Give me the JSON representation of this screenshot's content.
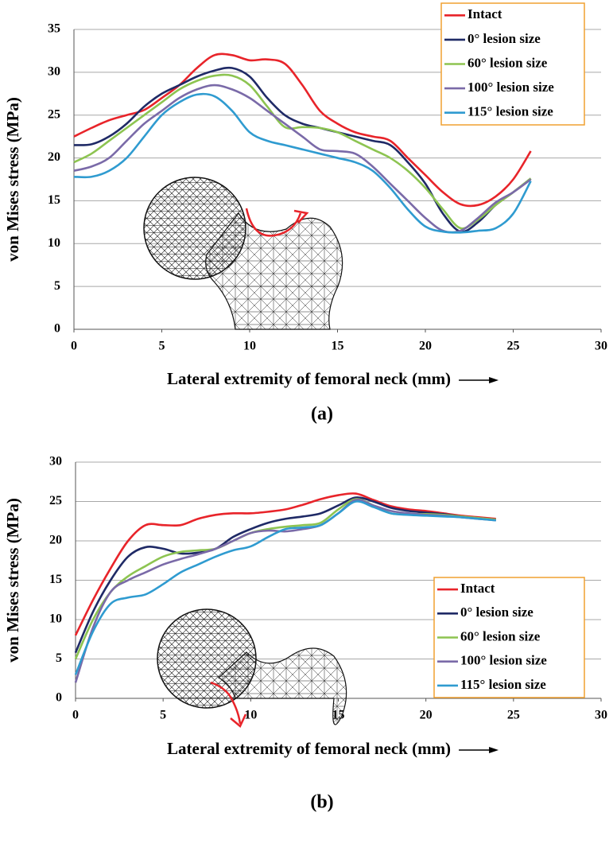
{
  "chart_data": [
    {
      "type": "line",
      "panel_label": "(a)",
      "x_label": "Lateral extremity of femoral neck (mm)",
      "y_label": "von Mises stress (MPa)",
      "xlim": [
        0,
        30
      ],
      "xticks": [
        0,
        5,
        10,
        15,
        20,
        25,
        30
      ],
      "ylim": [
        0,
        35
      ],
      "yticks": [
        0,
        5,
        10,
        15,
        20,
        25,
        30,
        35
      ],
      "grid": true,
      "legend": "upper right",
      "x": [
        0,
        1,
        2,
        3,
        4,
        5,
        6,
        7,
        8,
        9,
        10,
        11,
        12,
        13,
        14,
        15,
        16,
        17,
        18,
        19,
        20,
        21,
        22,
        23,
        24,
        25,
        26
      ],
      "series": [
        {
          "name": "Intact",
          "color": "#e8242a",
          "values": [
            22.5,
            23.5,
            24.4,
            25,
            25.6,
            27,
            28.5,
            30.5,
            32,
            32,
            31.4,
            31.5,
            31,
            28.5,
            25.5,
            24,
            23,
            22.5,
            22,
            20,
            18,
            16,
            14.6,
            14.5,
            15.5,
            17.5,
            20.8
          ]
        },
        {
          "name": "0° lesion size",
          "color": "#1f2a66",
          "values": [
            21.5,
            21.6,
            22.5,
            24,
            26,
            27.5,
            28.5,
            29.5,
            30.2,
            30.5,
            29.5,
            27,
            25,
            24,
            23.5,
            23,
            22.5,
            22,
            21.5,
            19.5,
            17,
            13.5,
            11.4,
            12.5,
            14.5,
            16,
            17.6
          ]
        },
        {
          "name": "60° lesion size",
          "color": "#8dc451",
          "values": [
            19.5,
            20.5,
            22,
            23.5,
            25,
            26.5,
            28,
            29,
            29.6,
            29.6,
            28.5,
            26,
            23.6,
            23.6,
            23.5,
            23,
            22,
            21,
            20,
            18.5,
            16.5,
            14,
            11.8,
            12.8,
            14.5,
            16,
            17.6
          ]
        },
        {
          "name": "100° lesion size",
          "color": "#7a6aa8",
          "values": [
            18.5,
            19,
            20,
            22,
            24,
            25.5,
            27,
            28,
            28.5,
            28,
            27,
            25.5,
            24,
            22.5,
            21,
            20.8,
            20.5,
            19,
            17,
            15,
            13,
            11.5,
            11.5,
            13,
            14.8,
            16,
            17.5
          ]
        },
        {
          "name": "115° lesion size",
          "color": "#2f9bd0",
          "values": [
            17.8,
            17.8,
            18.5,
            20,
            22.5,
            25,
            26.5,
            27.4,
            27.2,
            25.5,
            23,
            22,
            21.5,
            21,
            20.5,
            20,
            19.5,
            18.5,
            16.5,
            14,
            12,
            11.4,
            11.3,
            11.5,
            11.8,
            13.5,
            17.3
          ]
        }
      ]
    },
    {
      "type": "line",
      "panel_label": "(b)",
      "x_label": "Lateral extremity of femoral neck (mm)",
      "y_label": "von Mises stress (MPa)",
      "xlim": [
        0,
        30
      ],
      "xticks": [
        0,
        5,
        10,
        15,
        20,
        25,
        30
      ],
      "ylim": [
        0,
        30
      ],
      "yticks": [
        0,
        5,
        10,
        15,
        20,
        25,
        30
      ],
      "grid": true,
      "legend": "lower right",
      "x": [
        0,
        1,
        2,
        3,
        4,
        5,
        6,
        7,
        8,
        9,
        10,
        11,
        12,
        13,
        14,
        15,
        16,
        17,
        18,
        19,
        20,
        21,
        22,
        23,
        24
      ],
      "series": [
        {
          "name": "Intact",
          "color": "#e8242a",
          "values": [
            8,
            12.5,
            16.5,
            20,
            22,
            22,
            22,
            22.8,
            23.3,
            23.5,
            23.5,
            23.7,
            24,
            24.6,
            25.3,
            25.8,
            26,
            25.2,
            24.4,
            24,
            23.8,
            23.5,
            23.2,
            23,
            22.8
          ]
        },
        {
          "name": "0° lesion size",
          "color": "#1f2a66",
          "values": [
            5.8,
            11,
            15,
            18,
            19.2,
            19,
            18.4,
            18.5,
            19,
            20.5,
            21.5,
            22.3,
            22.8,
            23.1,
            23.5,
            24.5,
            25.5,
            25,
            24.2,
            23.8,
            23.6,
            23.4,
            23.1,
            22.9,
            22.7
          ]
        },
        {
          "name": "60° lesion size",
          "color": "#8dc451",
          "values": [
            5,
            10,
            13.5,
            15.5,
            16.8,
            18,
            18.6,
            18.8,
            19,
            20,
            21,
            21.5,
            21.8,
            22,
            22.3,
            24,
            25.3,
            24.5,
            23.5,
            23.4,
            23.4,
            23.3,
            23.1,
            22.9,
            22.7
          ]
        },
        {
          "name": "100° lesion size",
          "color": "#7a6aa8",
          "values": [
            2,
            9,
            13.5,
            15,
            16,
            17,
            17.7,
            18.3,
            19,
            20,
            21,
            21.3,
            21.2,
            21.5,
            22,
            23.5,
            25.2,
            24.5,
            23.8,
            23.5,
            23.3,
            23.2,
            23,
            22.8,
            22.6
          ]
        },
        {
          "name": "115° lesion size",
          "color": "#2f9bd0",
          "values": [
            3,
            8.5,
            12,
            12.8,
            13.2,
            14.5,
            16,
            17,
            18,
            18.8,
            19.3,
            20.5,
            21.5,
            21.7,
            22,
            23.5,
            25,
            24.3,
            23.5,
            23.3,
            23.2,
            23.1,
            23,
            22.8,
            22.6
          ]
        }
      ]
    }
  ]
}
